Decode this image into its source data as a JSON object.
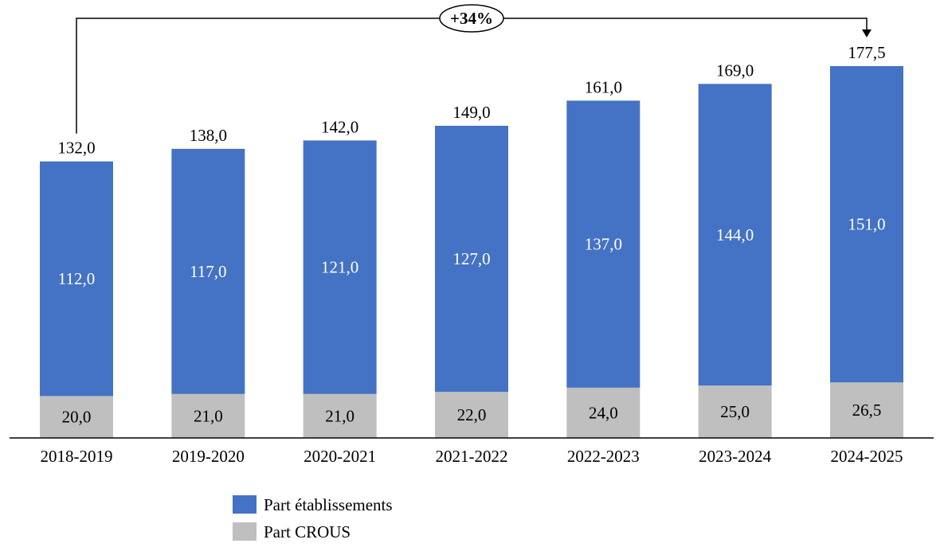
{
  "chart_data": {
    "type": "bar",
    "stacked": true,
    "categories": [
      "2018-2019",
      "2019-2020",
      "2020-2021",
      "2021-2022",
      "2022-2023",
      "2023-2024",
      "2024-2025"
    ],
    "series": [
      {
        "name": "Part CROUS",
        "color": "#BFBFBF",
        "values": [
          20.0,
          21.0,
          21.0,
          22.0,
          24.0,
          25.0,
          26.5
        ],
        "labels": [
          "20,0",
          "21,0",
          "21,0",
          "22,0",
          "24,0",
          "25,0",
          "26,5"
        ]
      },
      {
        "name": "Part établissements",
        "color": "#4472C4",
        "values": [
          112.0,
          117.0,
          121.0,
          127.0,
          137.0,
          144.0,
          151.0
        ],
        "labels": [
          "112,0",
          "117,0",
          "121,0",
          "127,0",
          "137,0",
          "144,0",
          "151,0"
        ]
      }
    ],
    "totals": [
      132.0,
      138.0,
      142.0,
      149.0,
      161.0,
      169.0,
      177.5
    ],
    "total_labels": [
      "132,0",
      "138,0",
      "142,0",
      "149,0",
      "161,0",
      "169,0",
      "177,5"
    ],
    "annotation": "+34%",
    "ylim": [
      0,
      177.5
    ],
    "grid": false,
    "legend_position": "bottom",
    "legend_entries": [
      "Part établissements",
      "Part CROUS"
    ]
  }
}
